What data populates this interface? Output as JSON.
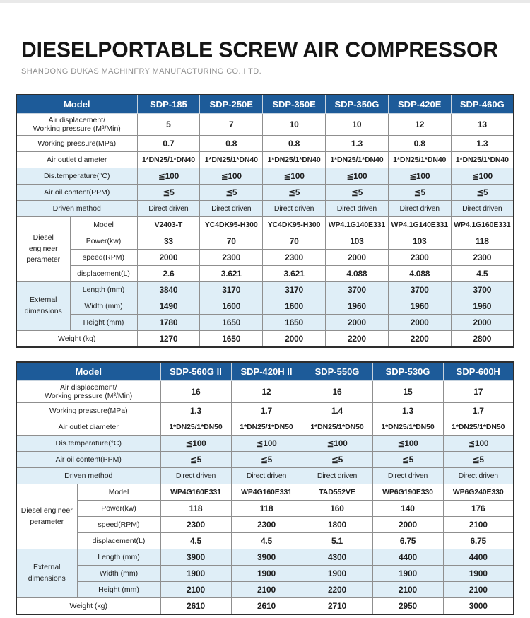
{
  "page": {
    "title": "DIESELPORTABLE SCREW AIR COMPRESSOR",
    "subtitle": "SHANDONG DUKAS MACHINFRY MANUFACTURING CO.,I TD."
  },
  "colors": {
    "header_blue": "#1d5b99",
    "row_highlight_blue": "#dfeef7",
    "outer_border": "#2e2e2e",
    "grid_line": "#8f8f8f"
  },
  "tables": [
    {
      "corner_label": "Model",
      "models": [
        "SDP-185",
        "SDP-250E",
        "SDP-350E",
        "SDP-350G",
        "SDP-420E",
        "SDP-460G"
      ],
      "col_widths": {
        "group": 76,
        "sub": 95
      },
      "rows": [
        {
          "label": "Air displacement/\nWorking pressure (M³/Min)",
          "values": [
            "5",
            "7",
            "10",
            "10",
            "12",
            "13"
          ],
          "bg": "white",
          "full": true,
          "tall": true
        },
        {
          "label": "Working pressure(MPa)",
          "values": [
            "0.7",
            "0.8",
            "0.8",
            "1.3",
            "0.8",
            "1.3"
          ],
          "bg": "white",
          "full": true
        },
        {
          "label": "Air outlet diameter",
          "values": [
            "1*DN25/1*DN40",
            "1*DN25/1*DN40",
            "1*DN25/1*DN40",
            "1*DN25/1*DN40",
            "1*DN25/1*DN40",
            "1*DN25/1*DN40"
          ],
          "bg": "white",
          "full": true,
          "cls": "sm"
        },
        {
          "label": "Dis.temperature(°C)",
          "values": [
            "≦100",
            "≦100",
            "≦100",
            "≦100",
            "≦100",
            "≦100"
          ],
          "bg": "blue",
          "full": true
        },
        {
          "label": "Air oil content(PPM)",
          "values": [
            "≦5",
            "≦5",
            "≦5",
            "≦5",
            "≦5",
            "≦5"
          ],
          "bg": "blue",
          "full": true
        },
        {
          "label": "Driven method",
          "values": [
            "Direct driven",
            "Direct driven",
            "Direct driven",
            "Direct driven",
            "Direct driven",
            "Direct driven"
          ],
          "bg": "blue",
          "full": true,
          "cls": "plain"
        },
        {
          "group": "Diesel\nengineer\nperameter",
          "group_span": 4,
          "label": "Model",
          "values": [
            "V2403-T",
            "YC4DK95-H300",
            "YC4DK95-H300",
            "WP4.1G140E331",
            "WP4.1G140E331",
            "WP4.1G160E331"
          ],
          "bg": "white",
          "cls": "sm"
        },
        {
          "label": "Power(kw)",
          "values": [
            "33",
            "70",
            "70",
            "103",
            "103",
            "118"
          ],
          "bg": "white"
        },
        {
          "label": "speed(RPM)",
          "values": [
            "2000",
            "2300",
            "2300",
            "2000",
            "2300",
            "2300"
          ],
          "bg": "white"
        },
        {
          "label": "displacement(L)",
          "values": [
            "2.6",
            "3.621",
            "3.621",
            "4.088",
            "4.088",
            "4.5"
          ],
          "bg": "white"
        },
        {
          "group": "External\ndimensions",
          "group_span": 3,
          "label": "Length (mm)",
          "values": [
            "3840",
            "3170",
            "3170",
            "3700",
            "3700",
            "3700"
          ],
          "bg": "blue"
        },
        {
          "label": "Width (mm)",
          "values": [
            "1490",
            "1600",
            "1600",
            "1960",
            "1960",
            "1960"
          ],
          "bg": "blue"
        },
        {
          "label": "Height (mm)",
          "values": [
            "1780",
            "1650",
            "1650",
            "2000",
            "2000",
            "2000"
          ],
          "bg": "blue"
        },
        {
          "label": "Weight (kg)",
          "values": [
            "1270",
            "1650",
            "2000",
            "2200",
            "2200",
            "2800"
          ],
          "bg": "white",
          "full": true
        }
      ]
    },
    {
      "corner_label": "Model",
      "models": [
        "SDP-560G II",
        "SDP-420H II",
        "SDP-550G",
        "SDP-530G",
        "SDP-600H"
      ],
      "col_widths": {
        "group": 86,
        "sub": 118
      },
      "rows": [
        {
          "label": "Air displacement/\nWorking pressure (M³/Min)",
          "values": [
            "16",
            "12",
            "16",
            "15",
            "17"
          ],
          "bg": "white",
          "full": true,
          "tall": true
        },
        {
          "label": "Working pressure(MPa)",
          "values": [
            "1.3",
            "1.7",
            "1.4",
            "1.3",
            "1.7"
          ],
          "bg": "white",
          "full": true
        },
        {
          "label": "Air outlet diameter",
          "values": [
            "1*DN25/1*DN50",
            "1*DN25/1*DN50",
            "1*DN25/1*DN50",
            "1*DN25/1*DN50",
            "1*DN25/1*DN50"
          ],
          "bg": "white",
          "full": true,
          "cls": "sm"
        },
        {
          "label": "Dis.temperature(°C)",
          "values": [
            "≦100",
            "≦100",
            "≦100",
            "≦100",
            "≦100"
          ],
          "bg": "blue",
          "full": true
        },
        {
          "label": "Air oil content(PPM)",
          "values": [
            "≦5",
            "≦5",
            "≦5",
            "≦5",
            "≦5"
          ],
          "bg": "blue",
          "full": true
        },
        {
          "label": "Driven method",
          "values": [
            "Direct driven",
            "Direct driven",
            "Direct driven",
            "Direct driven",
            "Direct driven"
          ],
          "bg": "blue",
          "full": true,
          "cls": "plain"
        },
        {
          "group": "Diesel\nengineer\nperameter",
          "group_span": 4,
          "label": "Model",
          "values": [
            "WP4G160E331",
            "WP4G160E331",
            "TAD552VE",
            "WP6G190E330",
            "WP6G240E330"
          ],
          "bg": "white",
          "cls": "sm"
        },
        {
          "label": "Power(kw)",
          "values": [
            "118",
            "118",
            "160",
            "140",
            "176"
          ],
          "bg": "white"
        },
        {
          "label": "speed(RPM)",
          "values": [
            "2300",
            "2300",
            "1800",
            "2000",
            "2100"
          ],
          "bg": "white"
        },
        {
          "label": "displacement(L)",
          "values": [
            "4.5",
            "4.5",
            "5.1",
            "6.75",
            "6.75"
          ],
          "bg": "white"
        },
        {
          "group": "External\ndimensions",
          "group_span": 3,
          "label": "Length (mm)",
          "values": [
            "3900",
            "3900",
            "4300",
            "4400",
            "4400"
          ],
          "bg": "blue"
        },
        {
          "label": "Width (mm)",
          "values": [
            "1900",
            "1900",
            "1900",
            "1900",
            "1900"
          ],
          "bg": "blue"
        },
        {
          "label": "Height (mm)",
          "values": [
            "2100",
            "2100",
            "2200",
            "2100",
            "2100"
          ],
          "bg": "blue"
        },
        {
          "label": "Weight (kg)",
          "values": [
            "2610",
            "2610",
            "2710",
            "2950",
            "3000"
          ],
          "bg": "white",
          "full": true
        }
      ]
    }
  ]
}
